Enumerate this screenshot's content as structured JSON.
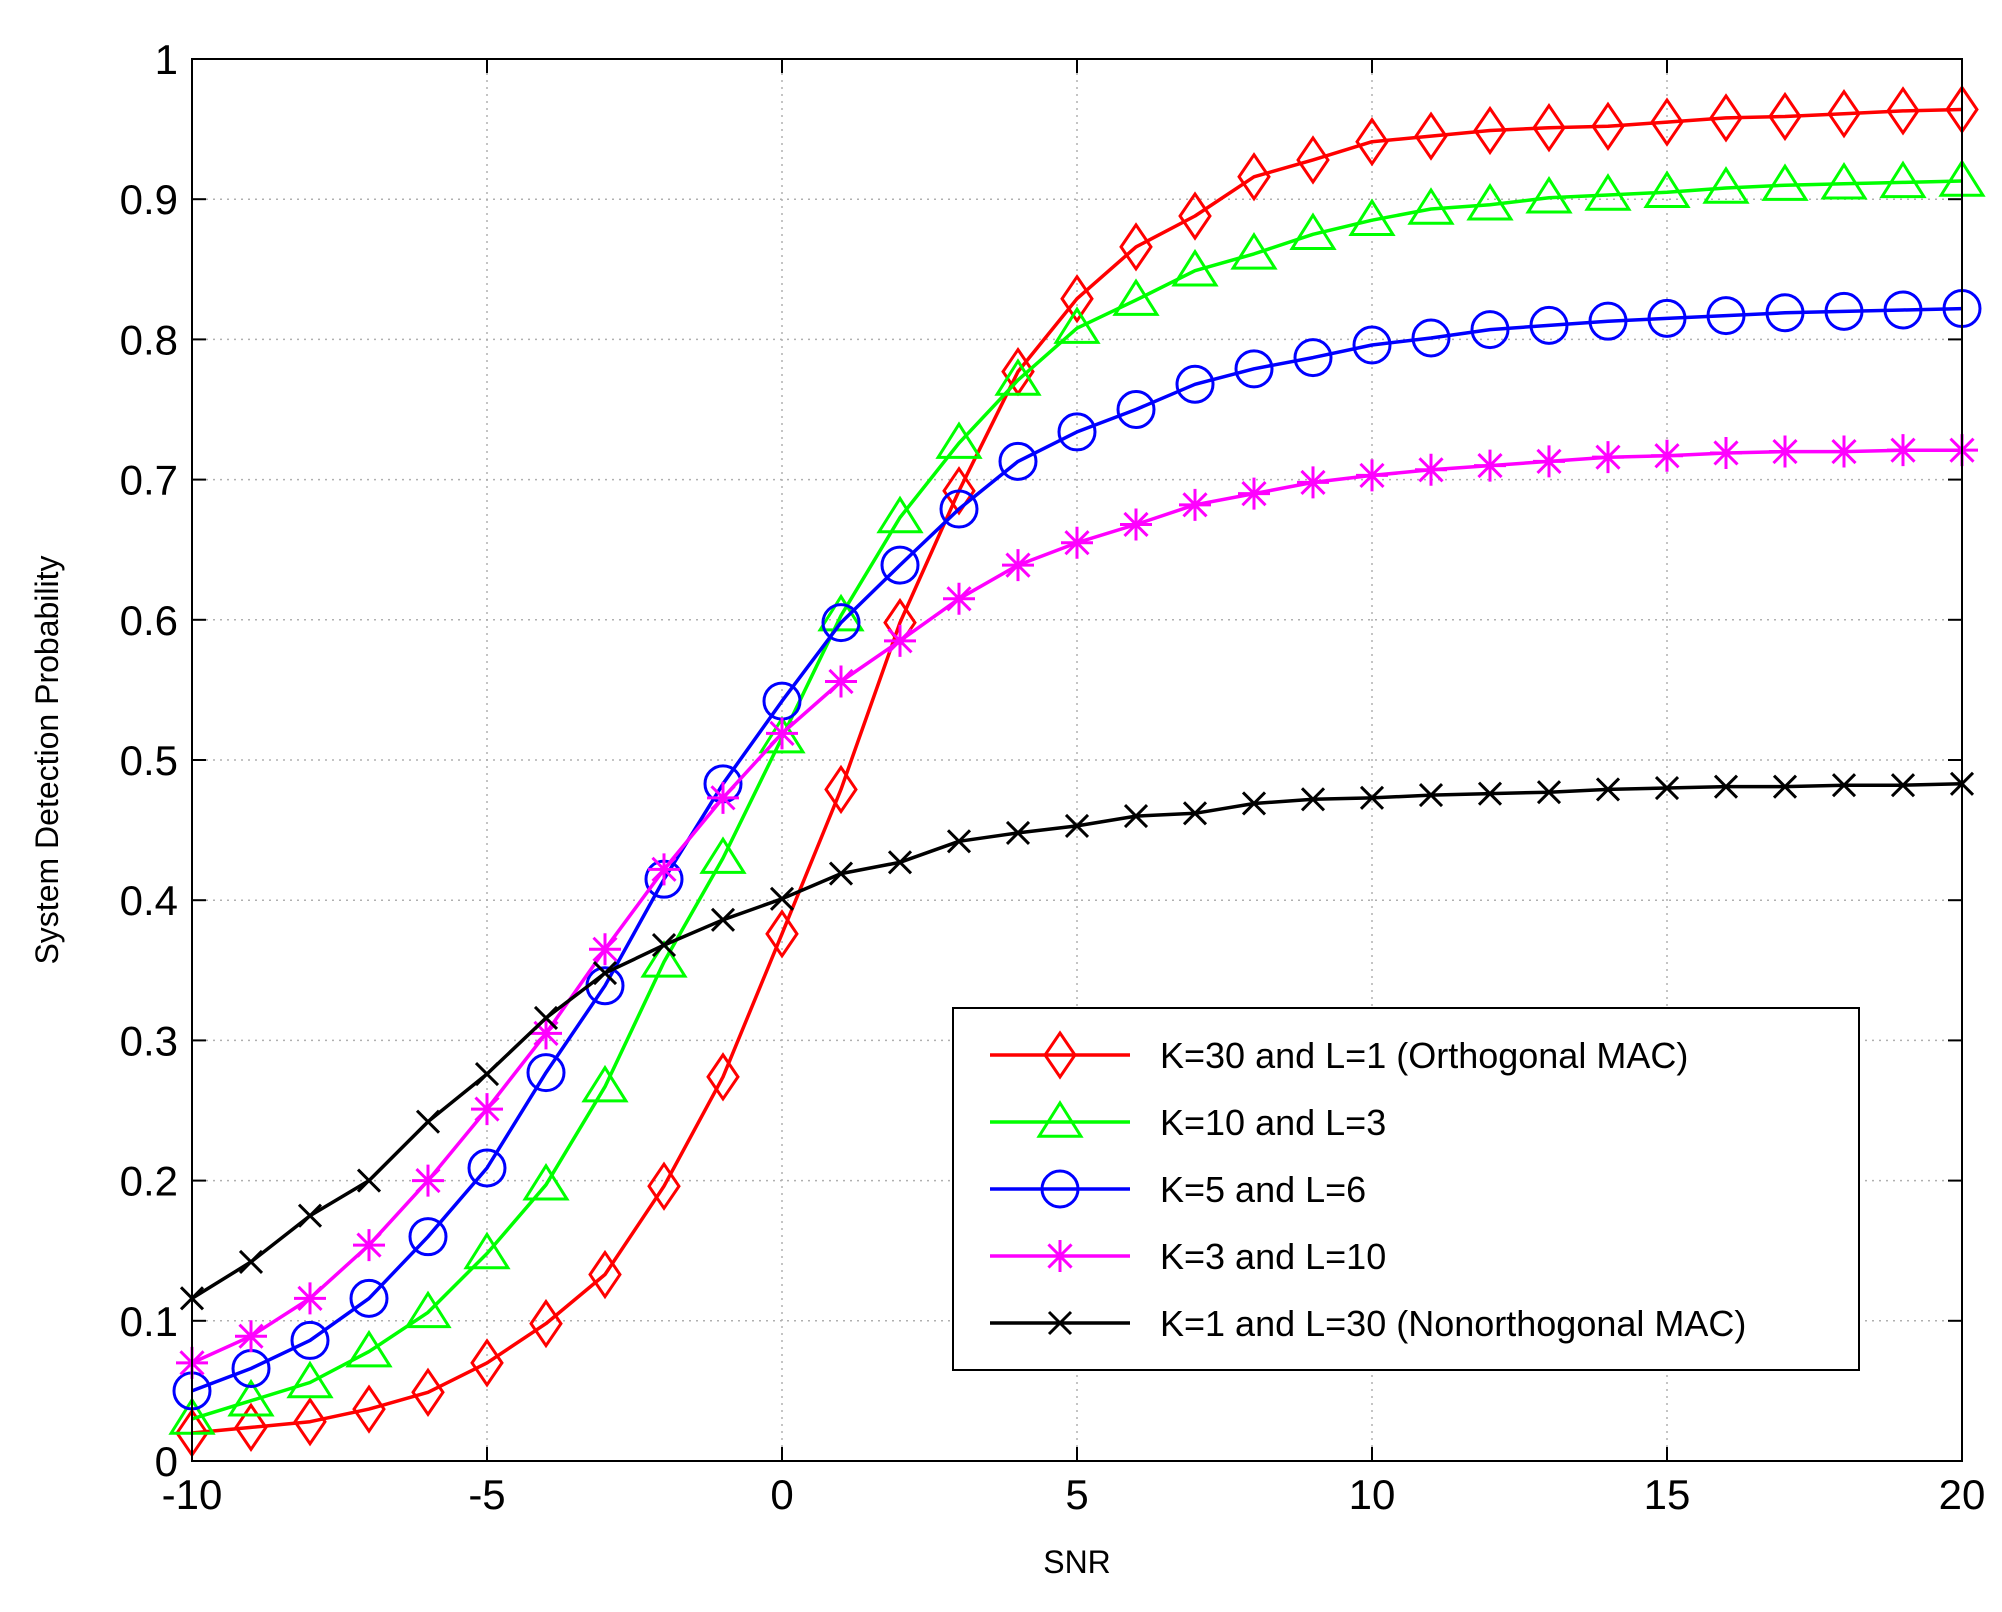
{
  "chart_data": {
    "type": "line",
    "title": "",
    "xlabel": "SNR",
    "ylabel": "System Detection Probability",
    "xlim": [
      -10,
      20
    ],
    "ylim": [
      0,
      1
    ],
    "grid": true,
    "legend_position": "bottom-right",
    "xticks": [
      -10,
      -5,
      0,
      5,
      10,
      15,
      20
    ],
    "xtick_labels": [
      "-10",
      "-5",
      "0",
      "5",
      "10",
      "15",
      "20"
    ],
    "yticks": [
      0,
      0.1,
      0.2,
      0.3,
      0.4,
      0.5,
      0.6,
      0.7,
      0.8,
      0.9,
      1
    ],
    "ytick_labels": [
      "0",
      "0.1",
      "0.2",
      "0.3",
      "0.4",
      "0.5",
      "0.6",
      "0.7",
      "0.8",
      "0.9",
      "1"
    ],
    "x": [
      -10,
      -9,
      -8,
      -7,
      -6,
      -5,
      -4,
      -3,
      -2,
      -1,
      0,
      1,
      2,
      3,
      4,
      5,
      6,
      7,
      8,
      9,
      10,
      11,
      12,
      13,
      14,
      15,
      16,
      17,
      18,
      19,
      20
    ],
    "series": [
      {
        "name": "K=30 and L=1 (Orthogonal MAC)",
        "color": "#ff0000",
        "marker": "diamond",
        "values": [
          0.02,
          0.024,
          0.028,
          0.037,
          0.049,
          0.07,
          0.098,
          0.133,
          0.196,
          0.274,
          0.376,
          0.479,
          0.598,
          0.692,
          0.777,
          0.829,
          0.866,
          0.888,
          0.916,
          0.928,
          0.941,
          0.945,
          0.949,
          0.951,
          0.952,
          0.955,
          0.958,
          0.959,
          0.961,
          0.963,
          0.964
        ]
      },
      {
        "name": "K=10 and L=3",
        "color": "#00ff00",
        "marker": "triangle",
        "values": [
          0.03,
          0.043,
          0.056,
          0.078,
          0.106,
          0.148,
          0.197,
          0.267,
          0.356,
          0.43,
          0.516,
          0.603,
          0.673,
          0.726,
          0.771,
          0.808,
          0.828,
          0.849,
          0.861,
          0.875,
          0.885,
          0.893,
          0.896,
          0.901,
          0.903,
          0.905,
          0.908,
          0.91,
          0.911,
          0.912,
          0.913
        ]
      },
      {
        "name": "K=5 and L=6",
        "color": "#0000ff",
        "marker": "circle",
        "values": [
          0.05,
          0.066,
          0.086,
          0.116,
          0.16,
          0.209,
          0.277,
          0.339,
          0.415,
          0.483,
          0.542,
          0.598,
          0.639,
          0.679,
          0.713,
          0.734,
          0.75,
          0.768,
          0.779,
          0.787,
          0.796,
          0.801,
          0.807,
          0.81,
          0.813,
          0.815,
          0.817,
          0.819,
          0.82,
          0.821,
          0.822
        ]
      },
      {
        "name": "K=3 and L=10",
        "color": "#ff00ff",
        "marker": "asterisk",
        "values": [
          0.07,
          0.089,
          0.116,
          0.154,
          0.2,
          0.251,
          0.305,
          0.365,
          0.422,
          0.473,
          0.519,
          0.556,
          0.585,
          0.615,
          0.639,
          0.655,
          0.668,
          0.682,
          0.69,
          0.698,
          0.703,
          0.707,
          0.71,
          0.713,
          0.716,
          0.717,
          0.719,
          0.72,
          0.72,
          0.721,
          0.721
        ]
      },
      {
        "name": "K=1 and L=30 (Nonorthogonal MAC)",
        "color": "#000000",
        "marker": "x",
        "values": [
          0.116,
          0.142,
          0.175,
          0.2,
          0.242,
          0.276,
          0.316,
          0.348,
          0.368,
          0.386,
          0.401,
          0.419,
          0.427,
          0.442,
          0.448,
          0.453,
          0.46,
          0.462,
          0.469,
          0.472,
          0.473,
          0.475,
          0.476,
          0.477,
          0.479,
          0.48,
          0.481,
          0.481,
          0.482,
          0.482,
          0.483
        ]
      }
    ]
  }
}
